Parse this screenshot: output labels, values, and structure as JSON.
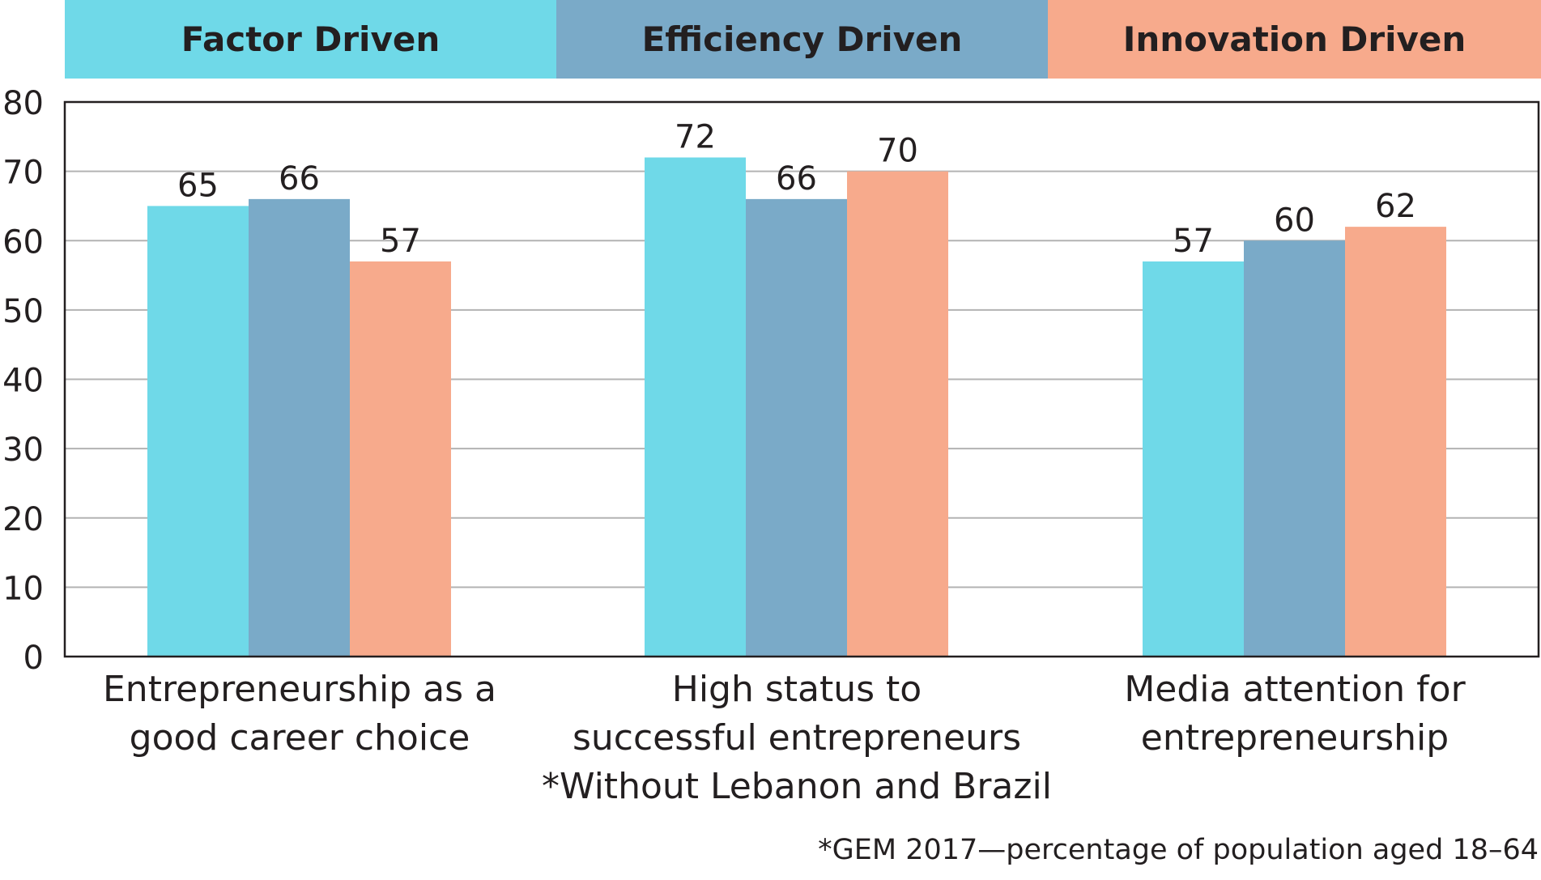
{
  "chart_data": {
    "type": "bar",
    "categories": [
      [
        "Entrepreneurship as a",
        "good career choice"
      ],
      [
        "High status to",
        "successful entrepreneurs",
        "*Without Lebanon and Brazil"
      ],
      [
        "Media attention for",
        "entrepreneurship"
      ]
    ],
    "series": [
      {
        "name": "Factor Driven",
        "color": "#6fd9e8",
        "values": [
          65,
          72,
          57
        ]
      },
      {
        "name": "Efficiency Driven",
        "color": "#7aaac8",
        "values": [
          66,
          66,
          60
        ]
      },
      {
        "name": "Innovation Driven",
        "color": "#f7aa8c",
        "values": [
          57,
          70,
          62
        ]
      }
    ],
    "ylim": [
      0,
      80
    ],
    "yticks": [
      "0",
      "10",
      "20",
      "30",
      "40",
      "50",
      "60",
      "70",
      "80"
    ],
    "grid": true,
    "legend_placement": "top",
    "footnote": "*GEM 2017—percentage of population aged 18–64"
  }
}
